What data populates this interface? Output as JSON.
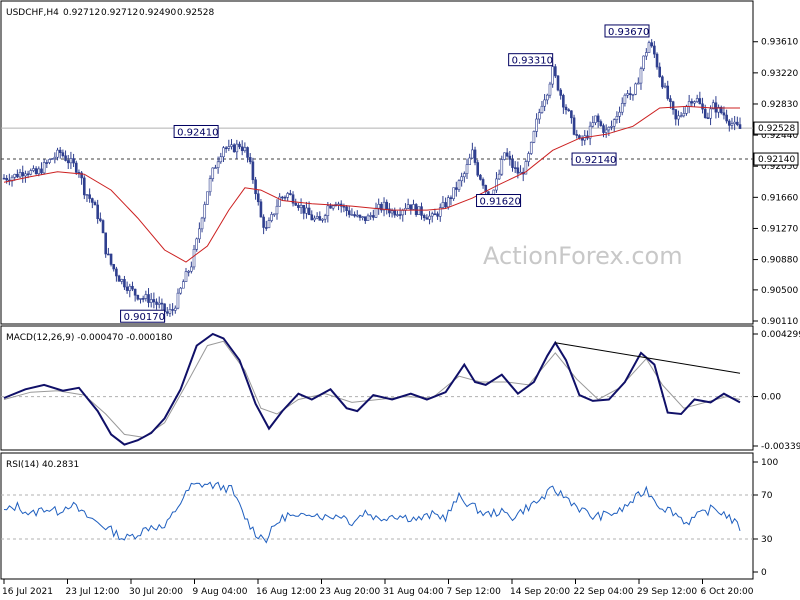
{
  "chart_data": [
    {
      "type": "candlestick",
      "symbol_header": "USDCHF,H4",
      "ohlc_header": [
        "0.92712",
        "0.92712",
        "0.92490",
        "0.92528"
      ],
      "ylim": [
        0.9011,
        0.9387
      ],
      "ticks": [
        "0.93610",
        "0.93220",
        "0.92830",
        "0.92440",
        "0.92050",
        "0.91660",
        "0.91270",
        "0.90880",
        "0.90500",
        "0.90110"
      ],
      "current_price": "0.92528",
      "level_line": "0.92140",
      "watermark": "ActionForex.com",
      "close_path": [
        [
          0,
          0.919
        ],
        [
          4,
          0.9193
        ],
        [
          8,
          0.92
        ],
        [
          12,
          0.9195
        ],
        [
          15,
          0.9205
        ],
        [
          18,
          0.9215
        ],
        [
          21,
          0.9222
        ],
        [
          24,
          0.9212
        ],
        [
          28,
          0.92
        ],
        [
          30,
          0.9175
        ],
        [
          33,
          0.916
        ],
        [
          36,
          0.9135
        ],
        [
          38,
          0.91
        ],
        [
          40,
          0.9082
        ],
        [
          43,
          0.9065
        ],
        [
          46,
          0.9055
        ],
        [
          49,
          0.9045
        ],
        [
          52,
          0.904
        ],
        [
          55,
          0.9038
        ],
        [
          58,
          0.903
        ],
        [
          61,
          0.902
        ],
        [
          63,
          0.9025
        ],
        [
          65,
          0.904
        ],
        [
          67,
          0.906
        ],
        [
          70,
          0.9082
        ],
        [
          72,
          0.911
        ],
        [
          74,
          0.9145
        ],
        [
          76,
          0.9175
        ],
        [
          78,
          0.9198
        ],
        [
          80,
          0.9215
        ],
        [
          82,
          0.923
        ],
        [
          84,
          0.9225
        ],
        [
          86,
          0.9228
        ],
        [
          88,
          0.9232
        ],
        [
          90,
          0.9225
        ],
        [
          92,
          0.9205
        ],
        [
          94,
          0.9175
        ],
        [
          96,
          0.914
        ],
        [
          98,
          0.9125
        ],
        [
          100,
          0.914
        ],
        [
          103,
          0.9165
        ],
        [
          106,
          0.917
        ],
        [
          109,
          0.9162
        ],
        [
          112,
          0.915
        ],
        [
          115,
          0.914
        ],
        [
          118,
          0.9135
        ],
        [
          121,
          0.9155
        ],
        [
          124,
          0.9162
        ],
        [
          127,
          0.9152
        ],
        [
          130,
          0.9145
        ],
        [
          133,
          0.9138
        ],
        [
          136,
          0.914
        ],
        [
          139,
          0.915
        ],
        [
          142,
          0.9155
        ],
        [
          145,
          0.9148
        ],
        [
          148,
          0.915
        ],
        [
          151,
          0.9158
        ],
        [
          154,
          0.915
        ],
        [
          157,
          0.9145
        ],
        [
          160,
          0.914
        ],
        [
          163,
          0.915
        ],
        [
          166,
          0.9162
        ],
        [
          169,
          0.9178
        ],
        [
          172,
          0.9195
        ],
        [
          175,
          0.9222
        ],
        [
          177,
          0.9198
        ],
        [
          179,
          0.9185
        ],
        [
          181,
          0.9165
        ],
        [
          183,
          0.9175
        ],
        [
          185,
          0.9195
        ],
        [
          187,
          0.9222
        ],
        [
          189,
          0.921
        ],
        [
          191,
          0.92
        ],
        [
          193,
          0.9195
        ],
        [
          195,
          0.9205
        ],
        [
          197,
          0.923
        ],
        [
          199,
          0.926
        ],
        [
          201,
          0.9285
        ],
        [
          203,
          0.93
        ],
        [
          205,
          0.9325
        ],
        [
          207,
          0.9305
        ],
        [
          209,
          0.9285
        ],
        [
          211,
          0.927
        ],
        [
          213,
          0.925
        ],
        [
          215,
          0.9235
        ],
        [
          217,
          0.924
        ],
        [
          219,
          0.925
        ],
        [
          221,
          0.9265
        ],
        [
          223,
          0.9255
        ],
        [
          225,
          0.9248
        ],
        [
          227,
          0.9255
        ],
        [
          229,
          0.927
        ],
        [
          231,
          0.9285
        ],
        [
          233,
          0.93
        ],
        [
          235,
          0.929
        ],
        [
          237,
          0.9315
        ],
        [
          239,
          0.934
        ],
        [
          241,
          0.936
        ],
        [
          243,
          0.9345
        ],
        [
          245,
          0.932
        ],
        [
          247,
          0.93
        ],
        [
          249,
          0.928
        ],
        [
          251,
          0.9262
        ],
        [
          253,
          0.927
        ],
        [
          255,
          0.9282
        ],
        [
          257,
          0.929
        ],
        [
          259,
          0.9288
        ],
        [
          261,
          0.9275
        ],
        [
          263,
          0.9268
        ],
        [
          265,
          0.928
        ],
        [
          267,
          0.9275
        ],
        [
          269,
          0.927
        ],
        [
          271,
          0.9262
        ],
        [
          273,
          0.9255
        ],
        [
          275,
          0.9252
        ]
      ],
      "ma_path": [
        [
          0,
          0.9185
        ],
        [
          10,
          0.9192
        ],
        [
          20,
          0.9198
        ],
        [
          30,
          0.9195
        ],
        [
          40,
          0.9175
        ],
        [
          50,
          0.914
        ],
        [
          60,
          0.91
        ],
        [
          68,
          0.9085
        ],
        [
          76,
          0.9105
        ],
        [
          84,
          0.915
        ],
        [
          90,
          0.9178
        ],
        [
          96,
          0.9175
        ],
        [
          104,
          0.9162
        ],
        [
          115,
          0.9158
        ],
        [
          130,
          0.9155
        ],
        [
          145,
          0.915
        ],
        [
          158,
          0.915
        ],
        [
          165,
          0.9152
        ],
        [
          175,
          0.9165
        ],
        [
          185,
          0.9182
        ],
        [
          195,
          0.9198
        ],
        [
          205,
          0.9225
        ],
        [
          215,
          0.924
        ],
        [
          225,
          0.9245
        ],
        [
          235,
          0.9255
        ],
        [
          245,
          0.9278
        ],
        [
          255,
          0.928
        ],
        [
          265,
          0.9278
        ],
        [
          275,
          0.9278
        ]
      ],
      "annotations": [
        {
          "label": "0.92410",
          "bar": 80,
          "price": 0.9241,
          "side": "left"
        },
        {
          "label": "0.90170",
          "bar": 60,
          "price": 0.9017,
          "side": "left"
        },
        {
          "label": "0.93310",
          "bar": 205,
          "price": 0.9331,
          "side": "left"
        },
        {
          "label": "0.93670",
          "bar": 241,
          "price": 0.9367,
          "side": "left"
        },
        {
          "label": "0.92140",
          "bar": 213,
          "price": 0.9214,
          "side": "right"
        },
        {
          "label": "0.91620",
          "bar": 193,
          "price": 0.9162,
          "side": "left"
        }
      ]
    },
    {
      "type": "line",
      "header": "MACD(12,26,9) -0.000470 -0.000180",
      "ylim": [
        -0.003396,
        0.004299
      ],
      "ticks": [
        "0.004299",
        "0.00",
        "-0.003396"
      ],
      "macd_path": [
        [
          0,
          -0.0001
        ],
        [
          8,
          0.0005
        ],
        [
          15,
          0.0008
        ],
        [
          22,
          0.0004
        ],
        [
          28,
          0.0006
        ],
        [
          35,
          -0.001
        ],
        [
          40,
          -0.0026
        ],
        [
          45,
          -0.0033
        ],
        [
          50,
          -0.003
        ],
        [
          55,
          -0.0025
        ],
        [
          60,
          -0.0015
        ],
        [
          66,
          0.0005
        ],
        [
          72,
          0.0035
        ],
        [
          78,
          0.0043
        ],
        [
          82,
          0.004
        ],
        [
          88,
          0.0025
        ],
        [
          94,
          -0.0005
        ],
        [
          99,
          -0.0022
        ],
        [
          104,
          -0.001
        ],
        [
          110,
          0.0002
        ],
        [
          115,
          -0.0002
        ],
        [
          122,
          0.0005
        ],
        [
          128,
          -0.0008
        ],
        [
          132,
          -0.001
        ],
        [
          138,
          0.0001
        ],
        [
          145,
          -0.0002
        ],
        [
          152,
          0.0002
        ],
        [
          158,
          -0.0002
        ],
        [
          165,
          0.0003
        ],
        [
          172,
          0.0022
        ],
        [
          176,
          0.001
        ],
        [
          180,
          0.0008
        ],
        [
          186,
          0.0015
        ],
        [
          192,
          0.0002
        ],
        [
          198,
          0.001
        ],
        [
          203,
          0.0028
        ],
        [
          206,
          0.0037
        ],
        [
          210,
          0.0025
        ],
        [
          215,
          0.0001
        ],
        [
          220,
          -0.0003
        ],
        [
          226,
          -0.0002
        ],
        [
          232,
          0.001
        ],
        [
          238,
          0.003
        ],
        [
          243,
          0.0022
        ],
        [
          248,
          -0.0011
        ],
        [
          253,
          -0.0012
        ],
        [
          258,
          -0.0002
        ],
        [
          264,
          -0.0004
        ],
        [
          269,
          0.0002
        ],
        [
          275,
          -0.0004
        ]
      ],
      "signal_path": [
        [
          0,
          -0.0002
        ],
        [
          10,
          0.0003
        ],
        [
          20,
          0.0004
        ],
        [
          30,
          0.0001
        ],
        [
          38,
          -0.0012
        ],
        [
          45,
          -0.0026
        ],
        [
          52,
          -0.0028
        ],
        [
          60,
          -0.0018
        ],
        [
          68,
          0.0008
        ],
        [
          76,
          0.0035
        ],
        [
          82,
          0.0038
        ],
        [
          90,
          0.0018
        ],
        [
          96,
          -0.0008
        ],
        [
          102,
          -0.0012
        ],
        [
          110,
          -0.0002
        ],
        [
          120,
          0.0002
        ],
        [
          130,
          -0.0004
        ],
        [
          140,
          -0.0002
        ],
        [
          150,
          0.0
        ],
        [
          160,
          -0.0001
        ],
        [
          170,
          0.0014
        ],
        [
          178,
          0.001
        ],
        [
          188,
          0.001
        ],
        [
          196,
          0.0008
        ],
        [
          206,
          0.003
        ],
        [
          214,
          0.0012
        ],
        [
          222,
          -0.0002
        ],
        [
          230,
          0.0006
        ],
        [
          240,
          0.0026
        ],
        [
          246,
          0.0008
        ],
        [
          254,
          -0.0008
        ],
        [
          262,
          -0.0004
        ],
        [
          270,
          0.0
        ],
        [
          275,
          -0.0002
        ]
      ],
      "trendline": [
        [
          206,
          0.0037
        ],
        [
          275,
          0.0016
        ]
      ]
    },
    {
      "type": "line",
      "header": "RSI(14) 40.2831",
      "ylim": [
        0,
        100
      ],
      "ticks": [
        "100",
        "70",
        "30",
        "0"
      ],
      "rsi_path": [
        [
          0,
          55
        ],
        [
          5,
          60
        ],
        [
          10,
          52
        ],
        [
          15,
          58
        ],
        [
          20,
          55
        ],
        [
          25,
          62
        ],
        [
          30,
          52
        ],
        [
          35,
          45
        ],
        [
          40,
          38
        ],
        [
          45,
          30
        ],
        [
          50,
          35
        ],
        [
          55,
          42
        ],
        [
          60,
          40
        ],
        [
          65,
          60
        ],
        [
          70,
          78
        ],
        [
          75,
          80
        ],
        [
          80,
          78
        ],
        [
          85,
          75
        ],
        [
          90,
          50
        ],
        [
          94,
          35
        ],
        [
          98,
          30
        ],
        [
          102,
          45
        ],
        [
          106,
          52
        ],
        [
          110,
          48
        ],
        [
          114,
          55
        ],
        [
          120,
          50
        ],
        [
          126,
          52
        ],
        [
          130,
          45
        ],
        [
          135,
          55
        ],
        [
          140,
          48
        ],
        [
          145,
          52
        ],
        [
          150,
          50
        ],
        [
          155,
          48
        ],
        [
          160,
          52
        ],
        [
          165,
          50
        ],
        [
          170,
          68
        ],
        [
          175,
          60
        ],
        [
          180,
          52
        ],
        [
          185,
          55
        ],
        [
          190,
          50
        ],
        [
          195,
          58
        ],
        [
          200,
          65
        ],
        [
          205,
          75
        ],
        [
          210,
          68
        ],
        [
          215,
          58
        ],
        [
          220,
          50
        ],
        [
          225,
          52
        ],
        [
          230,
          55
        ],
        [
          235,
          65
        ],
        [
          240,
          75
        ],
        [
          245,
          60
        ],
        [
          250,
          55
        ],
        [
          255,
          45
        ],
        [
          260,
          52
        ],
        [
          265,
          58
        ],
        [
          270,
          52
        ],
        [
          275,
          40
        ]
      ]
    }
  ],
  "time_axis": [
    "16 Jul 2021",
    "23 Jul 12:00",
    "30 Jul 20:00",
    "9 Aug 04:00",
    "16 Aug 12:00",
    "23 Aug 20:00",
    "31 Aug 04:00",
    "7 Sep 12:00",
    "14 Sep 20:00",
    "22 Sep 04:00",
    "29 Sep 12:00",
    "6 Oct 20:00"
  ],
  "colors": {
    "bullish": "#2f3f8f",
    "bearish": "#2f3f8f",
    "ma": "#cc2020",
    "macd": "#101068",
    "signal": "#9a9a9a",
    "rsi": "#1f5fbf",
    "label_border": "#000060",
    "label_text": "#000060"
  }
}
